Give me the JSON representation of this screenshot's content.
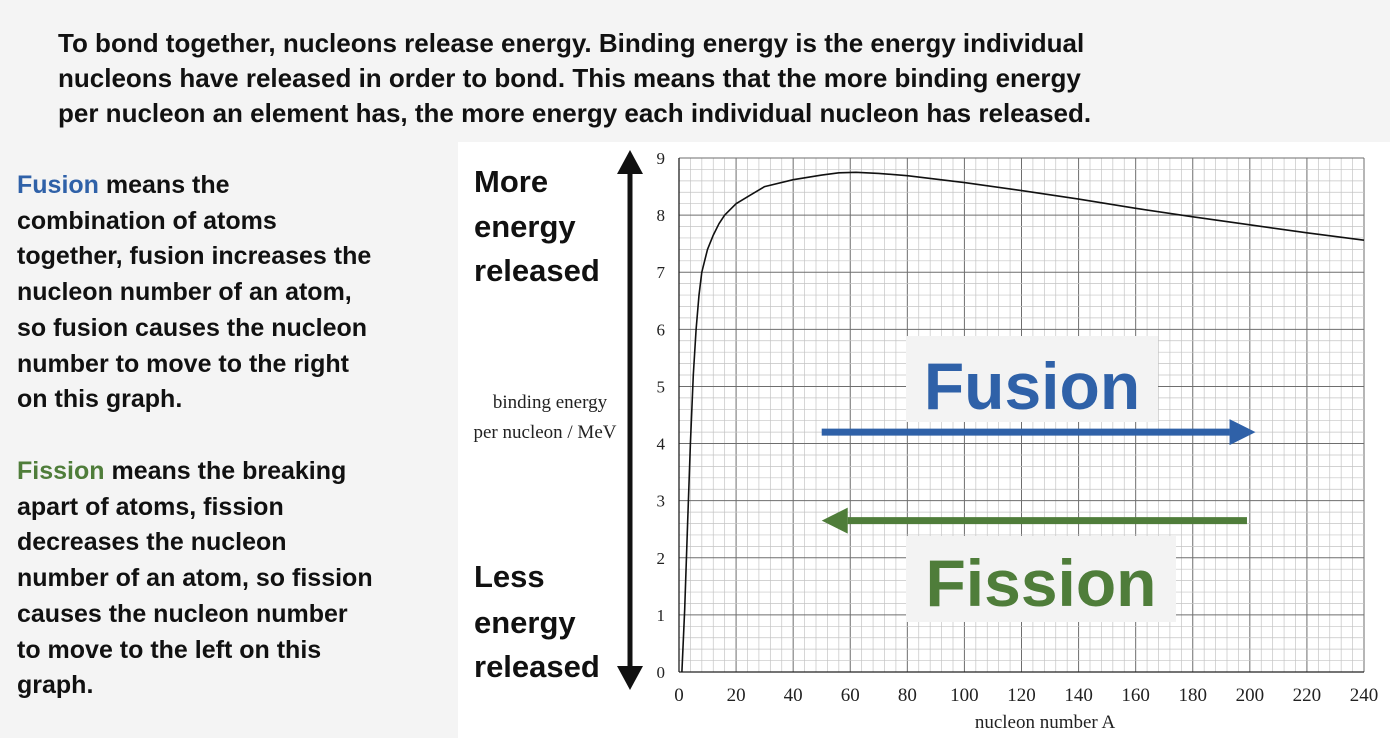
{
  "intro": {
    "lines": [
      "To bond together, nucleons release energy. Binding energy is the energy individual",
      "nucleons have released in order to bond. This means that the more binding energy",
      "per nucleon an element has, the more energy each individual nucleon has released."
    ]
  },
  "fusion_text": {
    "keyword": "Fusion",
    "first_line_rest": " means the",
    "lines": [
      "combination of atoms",
      "together, fusion increases the",
      "nucleon number of an atom,",
      "so fusion causes the nucleon",
      "number to move to the right",
      "on this graph."
    ]
  },
  "fission_text": {
    "keyword": "Fission",
    "first_line_rest": " means the breaking",
    "lines": [
      "apart of atoms, fission",
      "decreases the nucleon",
      "number of an atom, so fission",
      "causes the nucleon number",
      "to move to the left on this",
      "graph."
    ]
  },
  "annotations": {
    "more_energy": [
      "More",
      "energy",
      "released"
    ],
    "less_energy": [
      "Less",
      "energy",
      "released"
    ],
    "fusion_label": "Fusion",
    "fission_label": "Fission"
  },
  "colors": {
    "fusion": "#2f61a8",
    "fission": "#4f7d3a",
    "grid_minor": "#c4c4c4",
    "grid_major": "#6e6e6e",
    "curve": "#111111"
  },
  "chart_data": {
    "type": "line",
    "title": "",
    "xlabel": "nucleon number A",
    "ylabel_lines": [
      "binding energy",
      "per nucleon / MeV"
    ],
    "xlim": [
      0,
      240
    ],
    "ylim": [
      0,
      9
    ],
    "x_ticks": [
      0,
      20,
      40,
      60,
      80,
      100,
      120,
      140,
      160,
      180,
      200,
      220,
      240
    ],
    "y_ticks": [
      0,
      1,
      2,
      3,
      4,
      5,
      6,
      7,
      8,
      9
    ],
    "grid": true,
    "series": [
      {
        "x": [
          1,
          2,
          3,
          4,
          5,
          6,
          7,
          8,
          10,
          12,
          14,
          16,
          20,
          25,
          30,
          40,
          50,
          56,
          62,
          70,
          80,
          100,
          120,
          140,
          160,
          180,
          200,
          220,
          240
        ],
        "y": [
          0.0,
          1.1,
          2.6,
          4.0,
          5.2,
          6.0,
          6.6,
          7.0,
          7.4,
          7.65,
          7.85,
          8.0,
          8.2,
          8.35,
          8.5,
          8.62,
          8.7,
          8.74,
          8.75,
          8.73,
          8.69,
          8.57,
          8.43,
          8.28,
          8.12,
          7.97,
          7.83,
          7.69,
          7.56
        ]
      }
    ],
    "arrows": [
      {
        "label": "Fusion",
        "direction": "right",
        "x_from": 50,
        "x_to": 202,
        "y": 4.2
      },
      {
        "label": "Fission",
        "direction": "left",
        "x_from": 199,
        "x_to": 50,
        "y": 2.65
      }
    ]
  }
}
